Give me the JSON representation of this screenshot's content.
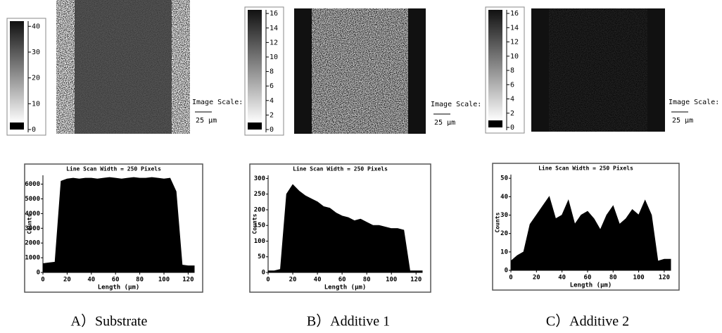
{
  "maps": [
    {
      "colorbar_ticks": [
        0,
        10,
        20,
        30,
        40
      ],
      "colorbar_lim": [
        0,
        42
      ],
      "image_scale": "Image Scale:",
      "scale_bar": "25 µm"
    },
    {
      "colorbar_ticks": [
        0,
        2,
        4,
        6,
        8,
        10,
        12,
        14,
        16
      ],
      "colorbar_lim": [
        0,
        16.5
      ],
      "image_scale": "Image Scale:",
      "scale_bar": "25 µm"
    },
    {
      "colorbar_ticks": [
        0,
        2,
        4,
        6,
        8,
        10,
        12,
        14,
        16
      ],
      "colorbar_lim": [
        0,
        16.5
      ],
      "image_scale": "Image Scale:",
      "scale_bar": "25 µm"
    }
  ],
  "chart_data": [
    {
      "type": "area",
      "title": "Line Scan Width = 250 Pixels",
      "xlabel": "Length (µm)",
      "ylabel": "Counts",
      "x": [
        0,
        5,
        10,
        15,
        20,
        25,
        30,
        35,
        40,
        45,
        50,
        55,
        60,
        65,
        70,
        75,
        80,
        85,
        90,
        95,
        100,
        105,
        110,
        115,
        120,
        125
      ],
      "values": [
        600,
        650,
        700,
        6200,
        6350,
        6400,
        6350,
        6400,
        6400,
        6350,
        6400,
        6450,
        6400,
        6350,
        6400,
        6450,
        6400,
        6400,
        6450,
        6400,
        6350,
        6400,
        5500,
        500,
        450,
        450
      ],
      "xlim": [
        0,
        125
      ],
      "xticks": [
        0,
        20,
        40,
        60,
        80,
        100,
        120
      ],
      "ylim": [
        0,
        6600
      ],
      "yticks": [
        0,
        1000,
        2000,
        3000,
        4000,
        5000,
        6000
      ],
      "color": "#000000"
    },
    {
      "type": "area",
      "title": "Line Scan Width = 250 Pixels",
      "xlabel": "Length (µm)",
      "ylabel": "Counts",
      "x": [
        0,
        5,
        10,
        15,
        20,
        25,
        30,
        35,
        40,
        45,
        50,
        55,
        60,
        65,
        70,
        75,
        80,
        85,
        90,
        95,
        100,
        105,
        110,
        115,
        120,
        125
      ],
      "values": [
        5,
        5,
        10,
        250,
        280,
        260,
        245,
        235,
        225,
        210,
        205,
        190,
        180,
        175,
        165,
        170,
        160,
        150,
        150,
        145,
        140,
        140,
        135,
        5,
        5,
        5
      ],
      "xlim": [
        0,
        125
      ],
      "xticks": [
        0,
        20,
        40,
        60,
        80,
        100,
        120
      ],
      "ylim": [
        0,
        310
      ],
      "yticks": [
        0,
        50,
        100,
        150,
        200,
        250,
        300
      ],
      "color": "#000000"
    },
    {
      "type": "area",
      "title": "Line Scan Width = 250 Pixels",
      "xlabel": "Length (µm)",
      "ylabel": "Counts",
      "x": [
        0,
        5,
        10,
        15,
        20,
        25,
        30,
        35,
        40,
        45,
        50,
        55,
        60,
        65,
        70,
        75,
        80,
        85,
        90,
        95,
        100,
        105,
        110,
        115,
        120,
        125
      ],
      "values": [
        5,
        8,
        10,
        25,
        30,
        35,
        40,
        28,
        30,
        38,
        25,
        30,
        32,
        28,
        22,
        30,
        35,
        25,
        28,
        33,
        30,
        38,
        30,
        5,
        6,
        6
      ],
      "xlim": [
        0,
        125
      ],
      "xticks": [
        0,
        20,
        40,
        60,
        80,
        100,
        120
      ],
      "ylim": [
        0,
        52
      ],
      "yticks": [
        0,
        10,
        20,
        30,
        40,
        50
      ],
      "color": "#000000"
    }
  ],
  "captions": [
    "A）Substrate",
    "B）Additive 1",
    "C）Additive 2"
  ]
}
